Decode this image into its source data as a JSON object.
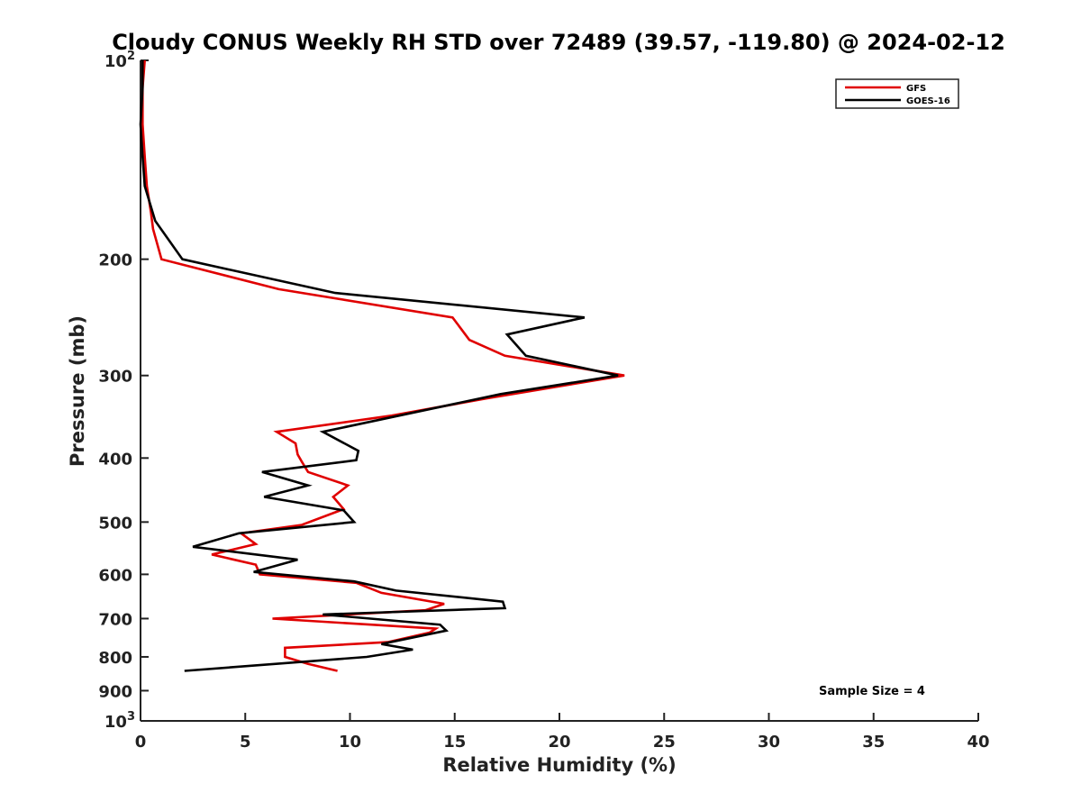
{
  "chart_data": {
    "type": "line",
    "title": "Cloudy CONUS Weekly RH STD over 72489 (39.57, -119.80) @ 2024-02-12",
    "xlabel": "Relative Humidity (%)",
    "ylabel": "Pressure (mb)",
    "xlim": [
      0,
      40
    ],
    "ylim": [
      100,
      1000
    ],
    "y_scale": "log",
    "y_inverted": true,
    "grid": false,
    "legend_position": "top-right",
    "x_ticks": [
      0,
      5,
      10,
      15,
      20,
      25,
      30,
      35,
      40
    ],
    "y_ticks": [
      {
        "value": 100,
        "label": "10",
        "sup": "2"
      },
      {
        "value": 200,
        "label": "200",
        "sup": ""
      },
      {
        "value": 300,
        "label": "300",
        "sup": ""
      },
      {
        "value": 400,
        "label": "400",
        "sup": ""
      },
      {
        "value": 500,
        "label": "500",
        "sup": ""
      },
      {
        "value": 600,
        "label": "600",
        "sup": ""
      },
      {
        "value": 700,
        "label": "700",
        "sup": ""
      },
      {
        "value": 800,
        "label": "800",
        "sup": ""
      },
      {
        "value": 900,
        "label": "900",
        "sup": ""
      },
      {
        "value": 1000,
        "label": "10",
        "sup": "3"
      }
    ],
    "series": [
      {
        "name": "GFS",
        "color": "#e00000",
        "points": [
          [
            0.2,
            100
          ],
          [
            0.1,
            110
          ],
          [
            0.1,
            125
          ],
          [
            0.2,
            140
          ],
          [
            0.3,
            155
          ],
          [
            0.5,
            170
          ],
          [
            0.6,
            180
          ],
          [
            1.0,
            200
          ],
          [
            6.6,
            222
          ],
          [
            14.9,
            245
          ],
          [
            15.7,
            265
          ],
          [
            17.4,
            280
          ],
          [
            23.1,
            300
          ],
          [
            16.5,
            325
          ],
          [
            12.0,
            345
          ],
          [
            6.5,
            365
          ],
          [
            7.4,
            380
          ],
          [
            7.5,
            395
          ],
          [
            7.7,
            405
          ],
          [
            8.0,
            420
          ],
          [
            9.9,
            440
          ],
          [
            9.2,
            458
          ],
          [
            9.7,
            478
          ],
          [
            7.7,
            505
          ],
          [
            4.8,
            520
          ],
          [
            5.5,
            540
          ],
          [
            3.4,
            560
          ],
          [
            5.5,
            580
          ],
          [
            5.7,
            600
          ],
          [
            10.3,
            618
          ],
          [
            11.5,
            640
          ],
          [
            14.5,
            665
          ],
          [
            13.6,
            680
          ],
          [
            6.3,
            700
          ],
          [
            14.1,
            725
          ],
          [
            13.8,
            735
          ],
          [
            11.8,
            760
          ],
          [
            6.9,
            775
          ],
          [
            6.9,
            800
          ],
          [
            8.0,
            820
          ],
          [
            9.4,
            840
          ]
        ]
      },
      {
        "name": "GOES-16",
        "color": "#000000",
        "points": [
          [
            0.1,
            100
          ],
          [
            0.1,
            110
          ],
          [
            0.0,
            125
          ],
          [
            0.1,
            140
          ],
          [
            0.2,
            155
          ],
          [
            0.7,
            175
          ],
          [
            2.0,
            200
          ],
          [
            9.3,
            225
          ],
          [
            21.2,
            245
          ],
          [
            17.5,
            260
          ],
          [
            18.4,
            280
          ],
          [
            22.8,
            300
          ],
          [
            17.2,
            320
          ],
          [
            8.7,
            365
          ],
          [
            10.4,
            390
          ],
          [
            10.3,
            403
          ],
          [
            5.8,
            420
          ],
          [
            8.0,
            440
          ],
          [
            5.9,
            458
          ],
          [
            9.7,
            480
          ],
          [
            10.2,
            500
          ],
          [
            4.7,
            520
          ],
          [
            2.5,
            545
          ],
          [
            7.5,
            570
          ],
          [
            5.4,
            595
          ],
          [
            10.2,
            615
          ],
          [
            12.2,
            635
          ],
          [
            17.3,
            660
          ],
          [
            17.4,
            675
          ],
          [
            8.7,
            690
          ],
          [
            14.3,
            715
          ],
          [
            14.6,
            730
          ],
          [
            11.5,
            765
          ],
          [
            13.0,
            780
          ],
          [
            10.8,
            800
          ],
          [
            2.1,
            840
          ]
        ]
      }
    ],
    "annotations": [
      "Sample Size = 4"
    ]
  }
}
